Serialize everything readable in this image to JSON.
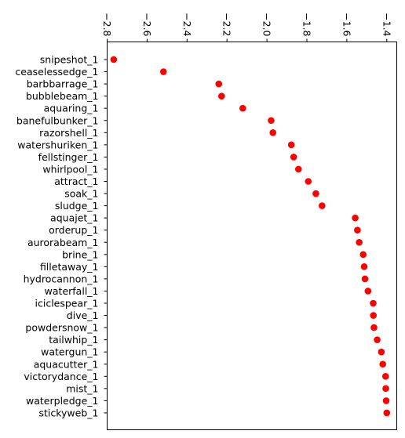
{
  "chart_data": {
    "type": "scatter",
    "orientation": "horizontal",
    "x_axis_position": "top",
    "x_tick_rotation": 90,
    "marker_color": "#ff0000",
    "grid": false,
    "xlim": [
      -2.8,
      -1.35
    ],
    "xticks": [
      -2.8,
      -2.6,
      -2.4,
      -2.2,
      -2.0,
      -1.8,
      -1.6,
      -1.4
    ],
    "xtick_labels": [
      "−2.8",
      "−2.6",
      "−2.4",
      "−2.2",
      "−2.0",
      "−1.8",
      "−1.6",
      "−1.4"
    ],
    "categories": [
      "snipeshot_1",
      "ceaselessedge_1",
      "barbbarrage_1",
      "bubblebeam_1",
      "aquaring_1",
      "banefulbunker_1",
      "razorshell_1",
      "watershuriken_1",
      "fellstinger_1",
      "whirlpool_1",
      "attract_1",
      "soak_1",
      "sludge_1",
      "aquajet_1",
      "orderup_1",
      "aurorabeam_1",
      "brine_1",
      "filletaway_1",
      "hydrocannon_1",
      "waterfall_1",
      "iciclespear_1",
      "dive_1",
      "powdersnow_1",
      "tailwhip_1",
      "watergun_1",
      "aquacutter_1",
      "victorydance_1",
      "mist_1",
      "waterpledge_1",
      "stickyweb_1"
    ],
    "values": [
      -2.767,
      -2.518,
      -2.241,
      -2.227,
      -2.121,
      -1.979,
      -1.97,
      -1.878,
      -1.866,
      -1.842,
      -1.793,
      -1.755,
      -1.724,
      -1.558,
      -1.547,
      -1.538,
      -1.518,
      -1.513,
      -1.509,
      -1.494,
      -1.468,
      -1.467,
      -1.464,
      -1.448,
      -1.427,
      -1.42,
      -1.406,
      -1.405,
      -1.403,
      -1.4
    ],
    "title": "",
    "xlabel": "",
    "ylabel": ""
  }
}
